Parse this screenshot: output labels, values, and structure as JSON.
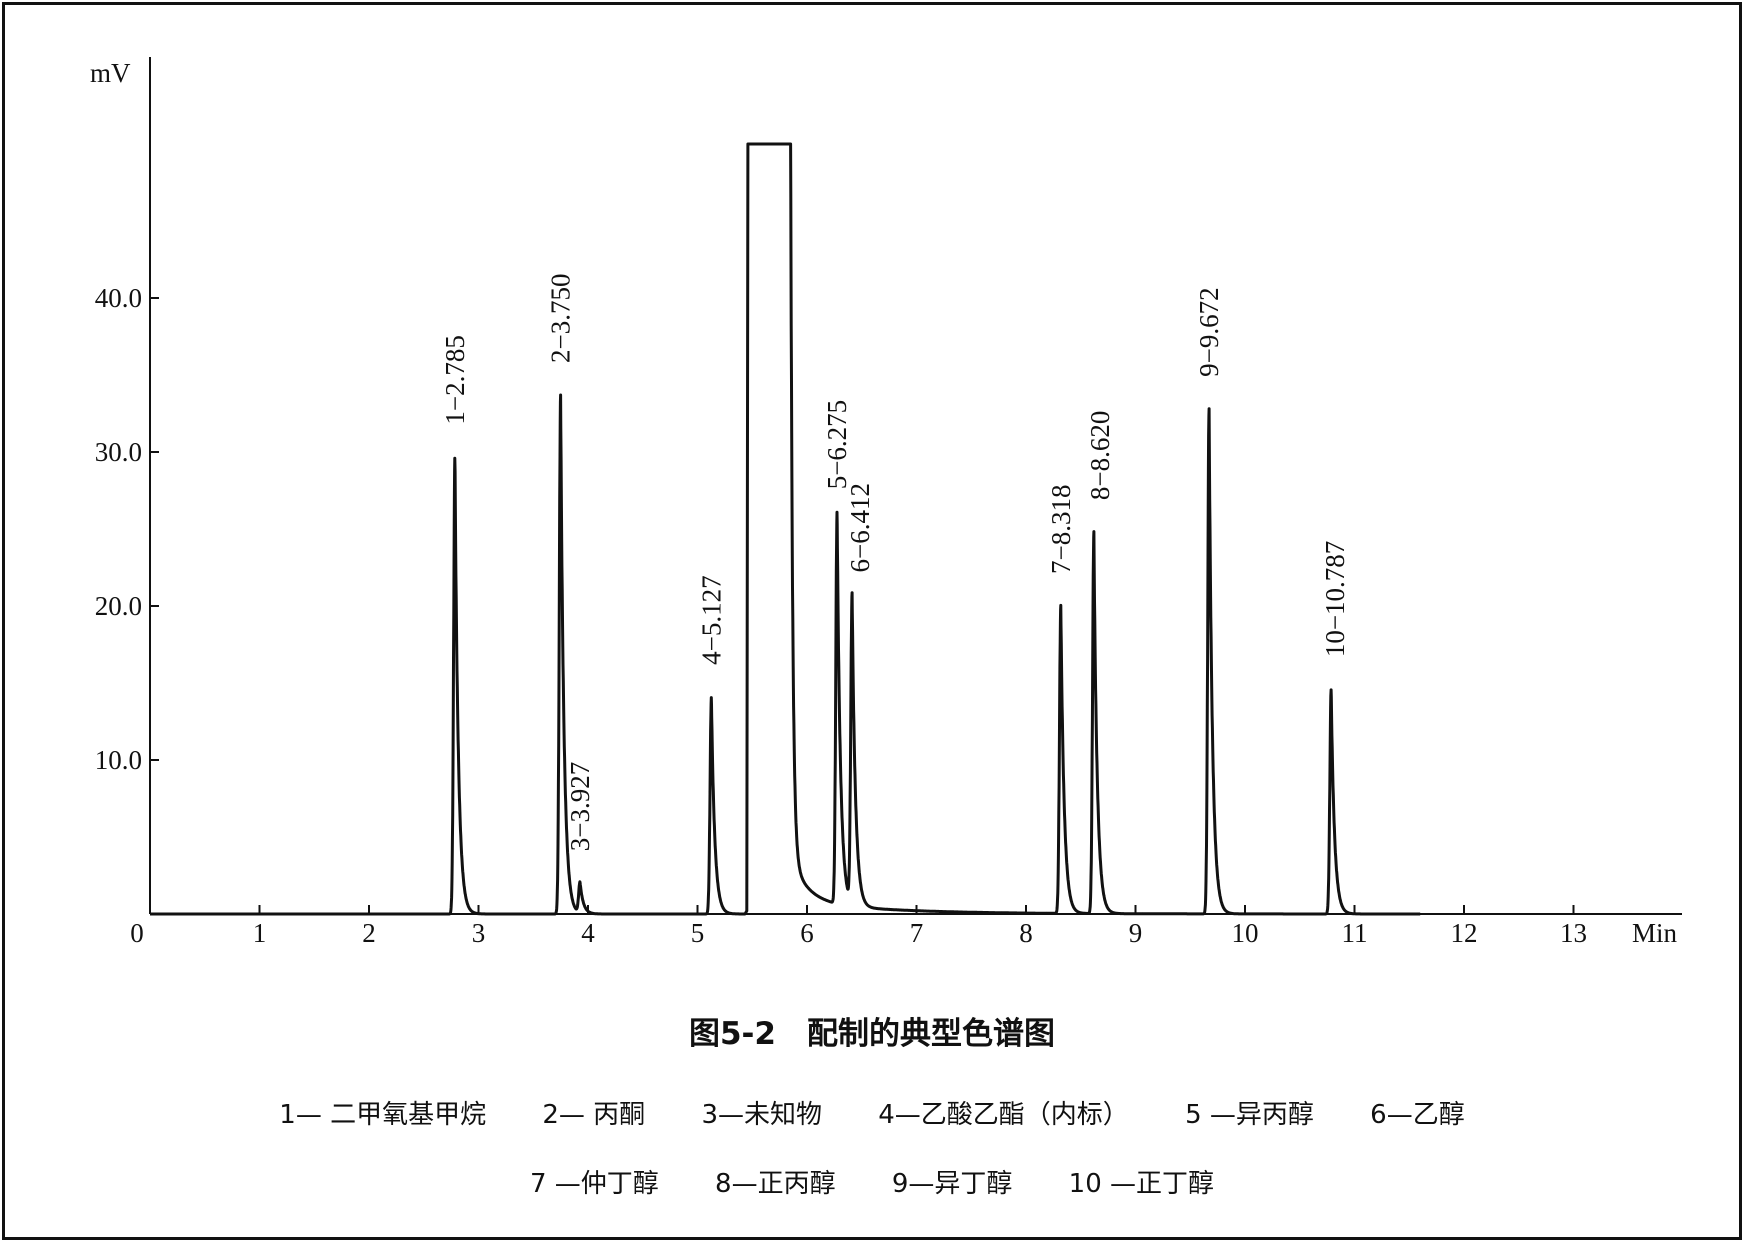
{
  "chart_data": {
    "type": "line",
    "title": "",
    "xlabel": "Min",
    "ylabel": "mV",
    "xlim": [
      0,
      14
    ],
    "ylim": [
      0,
      50
    ],
    "x_ticks": [
      0,
      1,
      2,
      3,
      4,
      5,
      6,
      7,
      8,
      9,
      10,
      11,
      12,
      13
    ],
    "x_tick_labels": [
      "0",
      "1",
      "2",
      "3",
      "4",
      "5",
      "6",
      "7",
      "8",
      "9",
      "10",
      "11",
      "12",
      "13"
    ],
    "y_ticks": [
      10,
      20,
      30,
      40
    ],
    "y_tick_labels": [
      "10.0",
      "20.0",
      "30.0",
      "40.0"
    ],
    "trace_end_min": 11.6,
    "grid": false,
    "off_scale_peak": {
      "start_min": 5.45,
      "end_min": 5.85,
      "clipped_at_mV": 50
    },
    "peaks": [
      {
        "rt": 2.785,
        "height": 29.7,
        "label": "1−2.785"
      },
      {
        "rt": 3.75,
        "height": 33.7,
        "label": "2−3.750"
      },
      {
        "rt": 3.927,
        "height": 2.0,
        "label": "3−3.927"
      },
      {
        "rt": 5.127,
        "height": 14.1,
        "label": "4−5.127"
      },
      {
        "rt": 6.275,
        "height": 25.5,
        "label": "5−6.275"
      },
      {
        "rt": 6.412,
        "height": 20.1,
        "label": "6−6.412"
      },
      {
        "rt": 8.318,
        "height": 20.0,
        "label": "7−8.318"
      },
      {
        "rt": 8.62,
        "height": 24.8,
        "label": "8−8.620"
      },
      {
        "rt": 9.672,
        "height": 32.8,
        "label": "9−9.672"
      },
      {
        "rt": 10.787,
        "height": 14.6,
        "label": "10−10.787"
      }
    ]
  },
  "figure": {
    "title": "图5-2　配制的典型色谱图"
  },
  "legend": {
    "row1": [
      "1— 二甲氧基甲烷",
      "2— 丙酮",
      "3—未知物",
      "4—乙酸乙酯（内标）",
      "5 —异丙醇",
      "6—乙醇"
    ],
    "row2": [
      "7 —仲丁醇",
      "8—正丙醇",
      "9—异丁醇",
      "10 —正丁醇"
    ]
  }
}
